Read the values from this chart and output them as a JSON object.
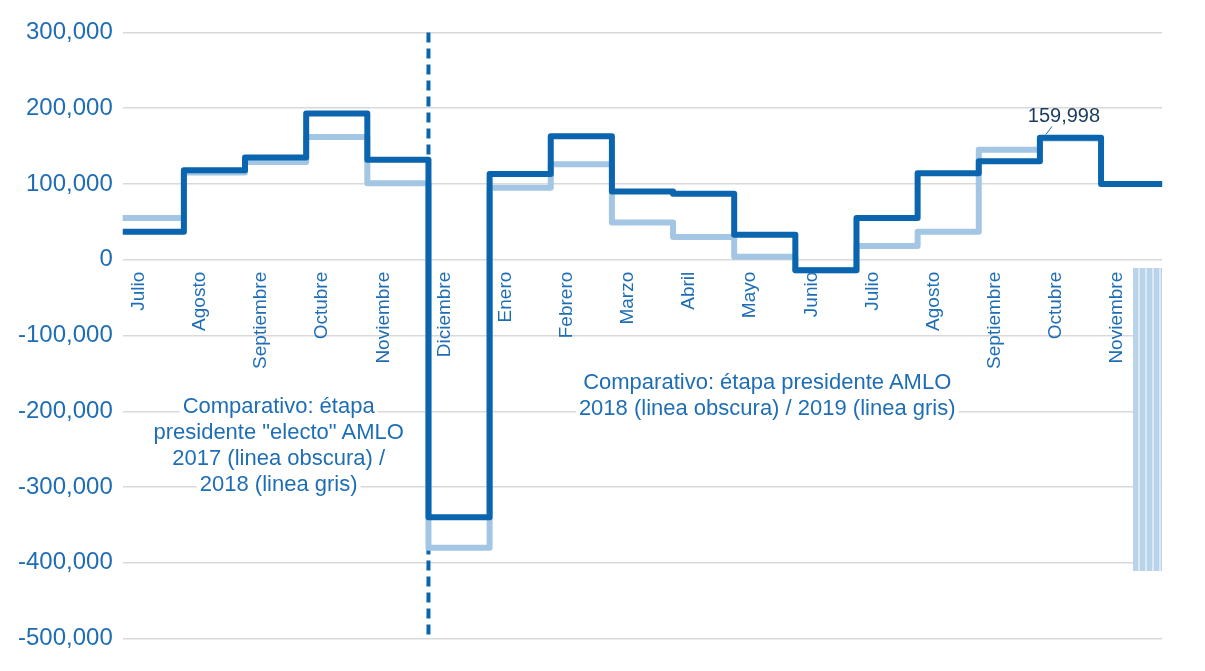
{
  "chart_data": {
    "type": "step",
    "categories": [
      "Julio",
      "Agosto",
      "Septiembre",
      "Octubre",
      "Noviembre",
      "Diciembre",
      "Enero",
      "Febrero",
      "Marzo",
      "Abril",
      "Mayo",
      "Junio",
      "Julio",
      "Agosto",
      "Septiembre",
      "Octubre",
      "Noviembre",
      null
    ],
    "series": [
      {
        "color": "#0a64ae",
        "values": [
          37000,
          118000,
          135000,
          193000,
          132000,
          -340000,
          113000,
          163000,
          90000,
          87000,
          33000,
          -14000,
          55000,
          114000,
          130000,
          161000,
          100000,
          100000
        ]
      },
      {
        "color": "#a3c6e4",
        "values": [
          55000,
          115000,
          129000,
          162000,
          101000,
          -380000,
          95000,
          126000,
          49000,
          30000,
          4000,
          -14000,
          18000,
          37000,
          145000,
          159998,
          159998,
          null
        ],
        "value_labels": [
          null,
          null,
          null,
          null,
          null,
          null,
          null,
          null,
          null,
          null,
          null,
          null,
          null,
          null,
          null,
          "159,998",
          null,
          null
        ]
      }
    ],
    "ylim": [
      -500000,
      300000
    ],
    "yticks": [
      {
        "value": -500000,
        "label": "-500,000"
      },
      {
        "value": -400000,
        "label": "-400,000"
      },
      {
        "value": -300000,
        "label": "-300,000"
      },
      {
        "value": -200000,
        "label": "-200,000"
      },
      {
        "value": -100000,
        "label": "-100,000"
      },
      0,
      {
        "value": 100000,
        "label": "100,000"
      },
      {
        "value": 200000,
        "label": "200,000"
      },
      {
        "value": 300000,
        "label": "300,000"
      }
    ],
    "grid": "y",
    "legend": false,
    "line_style": "solid",
    "marker": "none",
    "ref_lines": [
      {
        "axis": "x",
        "value": "Diciembre",
        "color": "#0a64ae",
        "line_style": "dashed"
      }
    ],
    "annotations": [
      "Comparativo: étapa\npresidente \"electo\" AMLO\n2017 (linea obscura) /\n2018 (linea gris)",
      "Comparativo: étapa presidente AMLO\n2018 (linea obscura) / 2019 (linea gris)"
    ]
  }
}
